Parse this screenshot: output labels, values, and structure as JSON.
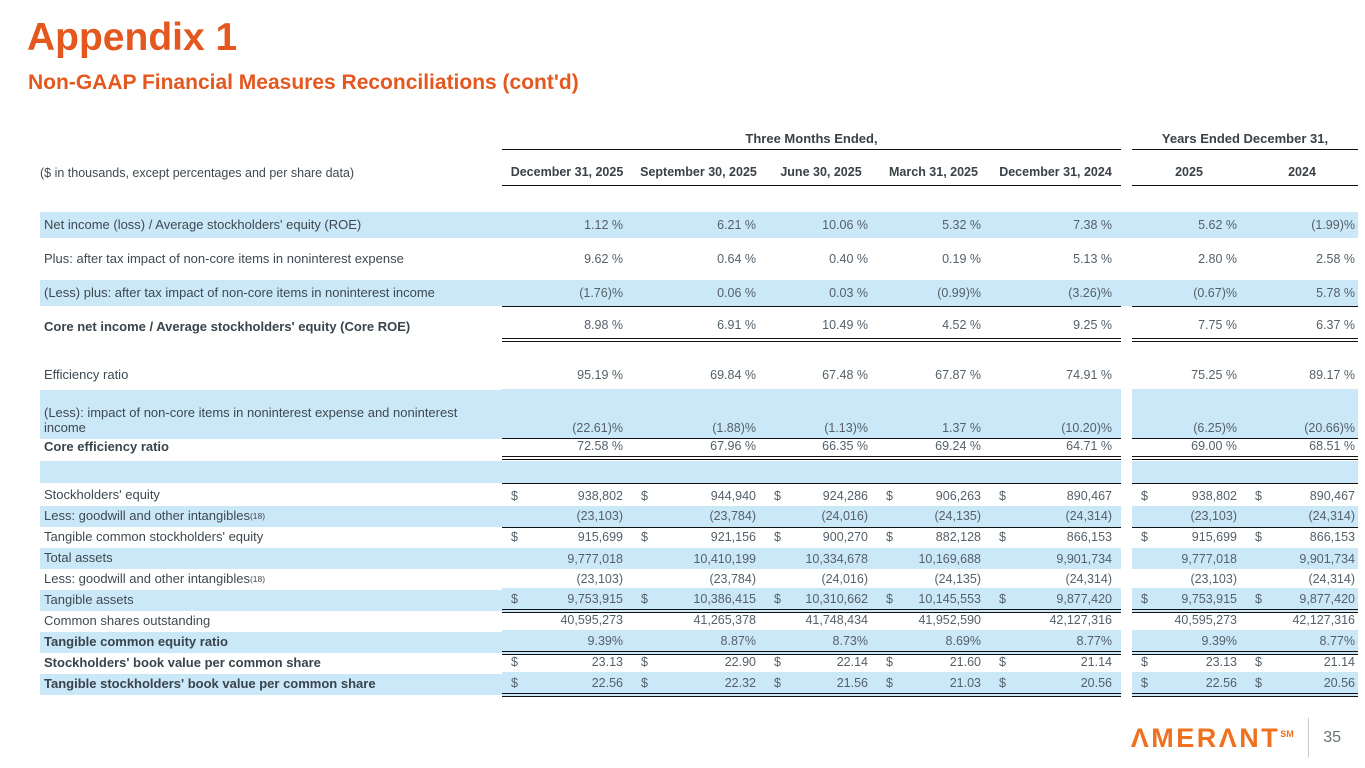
{
  "page": {
    "title": "Appendix 1",
    "subtitle": "Non-GAAP Financial Measures Reconciliations (cont'd)",
    "page_number": "35",
    "logo_text": "AMERANT",
    "logo_sup": "SM"
  },
  "colors": {
    "accent_orange": "#E4571F",
    "logo_orange": "#EF7120",
    "highlight_blue": "#CBE8F8",
    "rule_black": "#111111",
    "text_gray": "#55606A"
  },
  "table": {
    "note": "($ in thousands, except percentages and per share data)",
    "groups": [
      {
        "label": "Three Months Ended,",
        "cols": [
          "December 31, 2025",
          "September 30, 2025",
          "June 30, 2025",
          "March 31, 2025",
          "December 31, 2024"
        ]
      },
      {
        "label": "Years Ended December 31,",
        "cols": [
          "2025",
          "2024"
        ]
      }
    ],
    "rows": [
      {
        "kind": "pct",
        "shaded": true,
        "gap_shaded": true,
        "label": "Net income (loss) / Average stockholders' equity (ROE)",
        "values": [
          "1.12 %",
          "6.21 %",
          "10.06 %",
          "5.32 %",
          "7.38 %",
          "5.62 %",
          "(1.99)%"
        ]
      },
      {
        "kind": "pct",
        "shaded": false,
        "label": "Plus: after tax impact of non-core items in noninterest expense",
        "values": [
          "9.62 %",
          "0.64 %",
          "0.40 %",
          "0.19 %",
          "5.13 %",
          "2.80 %",
          "2.58 %"
        ]
      },
      {
        "kind": "pct",
        "shaded": true,
        "gap_shaded": true,
        "line": "single",
        "label": "(Less) plus: after tax impact of non-core items in noninterest income",
        "values": [
          "(1.76)%",
          "0.06 %",
          "0.03 %",
          "(0.99)%",
          "(3.26)%",
          "(0.67)%",
          "5.78 %"
        ]
      },
      {
        "kind": "total",
        "shaded": false,
        "bold": true,
        "line": "double",
        "label": "Core net income / Average stockholders' equity (Core ROE)",
        "values": [
          "8.98 %",
          "6.91 %",
          "10.49 %",
          "4.52 %",
          "9.25 %",
          "7.75 %",
          "6.37 %"
        ]
      },
      {
        "kind": "eff",
        "shaded": false,
        "label": "Efficiency ratio",
        "values": [
          "95.19 %",
          "69.84 %",
          "67.48 %",
          "67.87 %",
          "74.91 %",
          "75.25 %",
          "89.17 %"
        ]
      },
      {
        "kind": "tall",
        "shaded": true,
        "line": "single",
        "label": "(Less): impact of non-core items in noninterest expense and noninterest income",
        "values": [
          "(22.61)%",
          "(1.88)%",
          "(1.13)%",
          "1.37 %",
          "(10.20)%",
          "(6.25)%",
          "(20.66)%"
        ]
      },
      {
        "kind": "thin",
        "shaded": false,
        "bold": true,
        "line": "double",
        "label": "Core efficiency ratio",
        "values": [
          "72.58 %",
          "67.96 %",
          "66.35 %",
          "69.24 %",
          "64.71 %",
          "69.00 %",
          "68.51 %"
        ]
      },
      {
        "kind": "band",
        "shaded": true,
        "line": "single",
        "label": "",
        "values": [
          "",
          "",
          "",
          "",
          "",
          "",
          ""
        ]
      },
      {
        "kind": "thin",
        "shaded": false,
        "dollar": true,
        "label": "Stockholders' equity",
        "values": [
          "938,802",
          "944,940",
          "924,286",
          "906,263",
          "890,467",
          "938,802",
          "890,467"
        ]
      },
      {
        "kind": "thin",
        "shaded": true,
        "line": "single",
        "label": "Less: goodwill and other intangibles",
        "sup": "(18)",
        "values": [
          "(23,103)",
          "(23,784)",
          "(24,016)",
          "(24,135)",
          "(24,314)",
          "(23,103)",
          "(24,314)"
        ]
      },
      {
        "kind": "thin",
        "shaded": false,
        "dollar": true,
        "line": "single",
        "label": "Tangible common stockholders' equity",
        "values": [
          "915,699",
          "921,156",
          "900,270",
          "882,128",
          "866,153",
          "915,699",
          "866,153"
        ]
      },
      {
        "kind": "thin",
        "shaded": true,
        "label": "Total assets",
        "values": [
          "9,777,018",
          "10,410,199",
          "10,334,678",
          "10,169,688",
          "9,901,734",
          "9,777,018",
          "9,901,734"
        ]
      },
      {
        "kind": "thin",
        "shaded": false,
        "line": "single",
        "label": "Less: goodwill and other intangibles",
        "sup": "(18)",
        "values": [
          "(23,103)",
          "(23,784)",
          "(24,016)",
          "(24,135)",
          "(24,314)",
          "(23,103)",
          "(24,314)"
        ]
      },
      {
        "kind": "thin",
        "shaded": true,
        "dollar": true,
        "line": "double",
        "label": "Tangible assets",
        "values": [
          "9,753,915",
          "10,386,415",
          "10,310,662",
          "10,145,553",
          "9,877,420",
          "9,753,915",
          "9,877,420"
        ]
      },
      {
        "kind": "thin",
        "shaded": false,
        "line": "double",
        "label": "Common shares outstanding",
        "values": [
          "40,595,273",
          "41,265,378",
          "41,748,434",
          "41,952,590",
          "42,127,316",
          "40,595,273",
          "42,127,316"
        ]
      },
      {
        "kind": "thin",
        "shaded": true,
        "bold": true,
        "line": "double",
        "label": "Tangible common equity ratio",
        "values": [
          "9.39%",
          "8.87%",
          "8.73%",
          "8.69%",
          "8.77%",
          "9.39%",
          "8.77%"
        ]
      },
      {
        "kind": "thin",
        "shaded": false,
        "bold": true,
        "dollar": true,
        "line": "double",
        "label": "Stockholders' book value per common share",
        "values": [
          "23.13",
          "22.90",
          "22.14",
          "21.60",
          "21.14",
          "23.13",
          "21.14"
        ]
      },
      {
        "kind": "thin",
        "shaded": true,
        "bold": true,
        "dollar": true,
        "line": "double",
        "label": "Tangible stockholders' book value per common share",
        "values": [
          "22.56",
          "22.32",
          "21.56",
          "21.03",
          "20.56",
          "22.56",
          "20.56"
        ]
      }
    ]
  }
}
